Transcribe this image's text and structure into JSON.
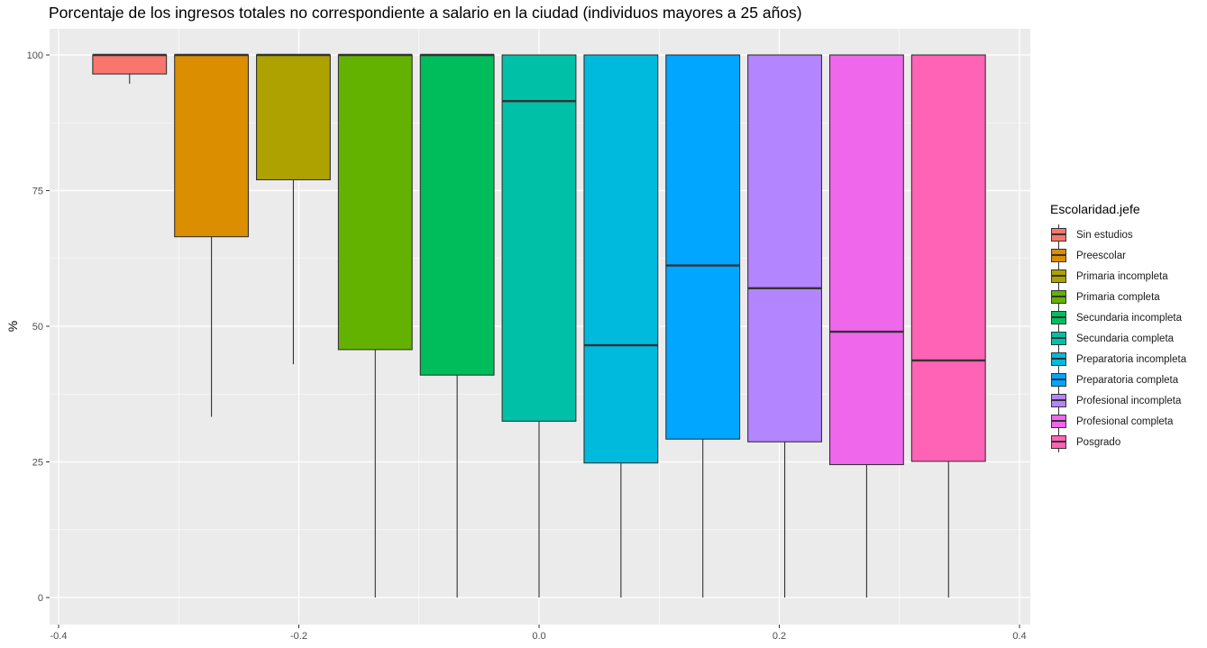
{
  "chart_data": {
    "type": "boxplot",
    "title": "Porcentaje de los ingresos totales no correspondiente a salario en la ciudad (individuos mayores a 25 años)",
    "xlabel": "",
    "ylabel": "%",
    "xlim": [
      -0.4,
      0.4
    ],
    "ylim": [
      0,
      100
    ],
    "x_ticks": [
      -0.4,
      -0.2,
      0.0,
      0.2,
      0.4
    ],
    "x_tick_labels": [
      "-0.4",
      "-0.2",
      "0.0",
      "0.2",
      "0.4"
    ],
    "y_ticks": [
      0,
      25,
      50,
      75,
      100
    ],
    "y_tick_labels": [
      "0",
      "25",
      "50",
      "75",
      "100"
    ],
    "grid": true,
    "legend_title": "Escolaridad.jefe",
    "legend_position": "right",
    "series": [
      {
        "name": "Sin estudios",
        "color": "#F8766D",
        "min": 94.7,
        "q1": 96.5,
        "median": 100,
        "q3": 100,
        "max": 100
      },
      {
        "name": "Preescolar",
        "color": "#DB8E00",
        "min": 33.3,
        "q1": 66.5,
        "median": 100,
        "q3": 100,
        "max": 100
      },
      {
        "name": "Primaria incompleta",
        "color": "#AEA200",
        "min": 43.0,
        "q1": 77.0,
        "median": 100,
        "q3": 100,
        "max": 100
      },
      {
        "name": "Primaria completa",
        "color": "#64B200",
        "min": 0,
        "q1": 45.7,
        "median": 100,
        "q3": 100,
        "max": 100
      },
      {
        "name": "Secundaria incompleta",
        "color": "#00BD5C",
        "min": 0,
        "q1": 41.0,
        "median": 100,
        "q3": 100,
        "max": 100
      },
      {
        "name": "Secundaria completa",
        "color": "#00C1A7",
        "min": 0,
        "q1": 32.5,
        "median": 91.5,
        "q3": 100,
        "max": 100
      },
      {
        "name": "Preparatoria incompleta",
        "color": "#00BADE",
        "min": 0,
        "q1": 24.8,
        "median": 46.5,
        "q3": 100,
        "max": 100
      },
      {
        "name": "Preparatoria completa",
        "color": "#00A6FF",
        "min": 0,
        "q1": 29.2,
        "median": 61.2,
        "q3": 100,
        "max": 100
      },
      {
        "name": "Profesional incompleta",
        "color": "#B385FF",
        "min": 0,
        "q1": 28.7,
        "median": 57.0,
        "q3": 100,
        "max": 100
      },
      {
        "name": "Profesional completa",
        "color": "#EF67EB",
        "min": 0,
        "q1": 24.5,
        "median": 49.0,
        "q3": 100,
        "max": 100
      },
      {
        "name": "Posgrado",
        "color": "#FF63B6",
        "min": 0,
        "q1": 25.1,
        "median": 43.7,
        "q3": 100,
        "max": 100
      }
    ]
  }
}
